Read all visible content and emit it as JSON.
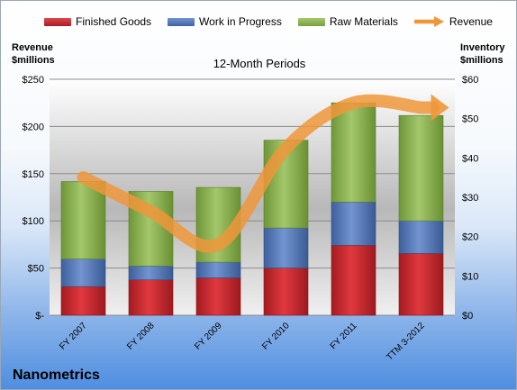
{
  "legend": {
    "items": [
      {
        "label": "Finished Goods",
        "color": "#c0272d"
      },
      {
        "label": "Work in Progress",
        "color": "#4f74b6"
      },
      {
        "label": "Raw Materials",
        "color": "#8ab24d"
      },
      {
        "label": "Revenue",
        "color": "#f0963a"
      }
    ]
  },
  "left_axis_title": [
    "Revenue",
    "$millions"
  ],
  "right_axis_title": [
    "Inventory",
    "$millions"
  ],
  "company": "Nanometrics",
  "chart_data": {
    "type": "bar",
    "title": "12-Month Periods",
    "categories": [
      "FY 2007",
      "FY 2008",
      "FY 2009",
      "FY 2010",
      "FY 2011",
      "TTM 3-2012"
    ],
    "stacked": true,
    "series": [
      {
        "name": "Finished Goods",
        "axis": "right",
        "color": "#c0272d",
        "values": [
          7.3,
          9.0,
          9.5,
          12.0,
          17.8,
          15.7
        ]
      },
      {
        "name": "Work in Progress",
        "axis": "right",
        "color": "#4f74b6",
        "values": [
          7.0,
          3.5,
          4.0,
          10.2,
          11.0,
          8.3
        ]
      },
      {
        "name": "Raw Materials",
        "axis": "right",
        "color": "#8ab24d",
        "values": [
          19.7,
          19.0,
          19.0,
          22.3,
          25.2,
          26.8
        ]
      },
      {
        "name": "Revenue",
        "type": "line",
        "axis": "left",
        "color": "#f0963a",
        "values": [
          146,
          110,
          75,
          177,
          225,
          220
        ]
      }
    ],
    "y_left": {
      "min": 0,
      "max": 250,
      "ticks": [
        0,
        50,
        100,
        150,
        200,
        250
      ],
      "tick_labels": [
        "$-",
        "$50",
        "$100",
        "$150",
        "$200",
        "$250"
      ]
    },
    "y_right": {
      "min": 0,
      "max": 60,
      "ticks": [
        0,
        10,
        20,
        30,
        40,
        50,
        60
      ],
      "tick_labels": [
        "$0",
        "$10",
        "$20",
        "$30",
        "$40",
        "$50",
        "$60"
      ]
    },
    "grid": true,
    "legend_position": "top"
  }
}
